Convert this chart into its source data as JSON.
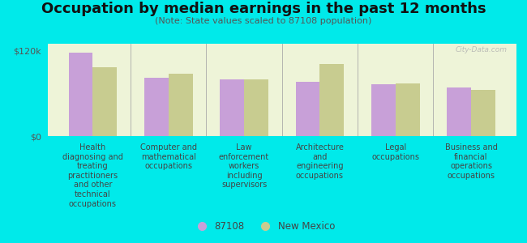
{
  "title": "Occupation by median earnings in the past 12 months",
  "subtitle": "(Note: State values scaled to 87108 population)",
  "background_color": "#00eaea",
  "plot_bg_color": "#eef4d8",
  "categories": [
    "Health\ndiagnosing and\ntreating\npractitioners\nand other\ntechnical\noccupations",
    "Computer and\nmathematical\noccupations",
    "Law\nenforcement\nworkers\nincluding\nsupervisors",
    "Architecture\nand\nengineering\noccupations",
    "Legal\noccupations",
    "Business and\nfinancial\noperations\noccupations"
  ],
  "values_87108": [
    118000,
    82000,
    80000,
    76000,
    73000,
    68000
  ],
  "values_nm": [
    97000,
    88000,
    80000,
    102000,
    74000,
    65000
  ],
  "color_87108": "#c8a0d8",
  "color_nm": "#c8cc90",
  "ylim": [
    0,
    130000
  ],
  "ytick_labels": [
    "$0",
    "$120k"
  ],
  "ytick_vals": [
    0,
    120000
  ],
  "legend_87108": "87108",
  "legend_nm": "New Mexico",
  "watermark": "City-Data.com",
  "title_fontsize": 13,
  "subtitle_fontsize": 8,
  "tick_label_fontsize": 7,
  "ytick_fontsize": 8
}
